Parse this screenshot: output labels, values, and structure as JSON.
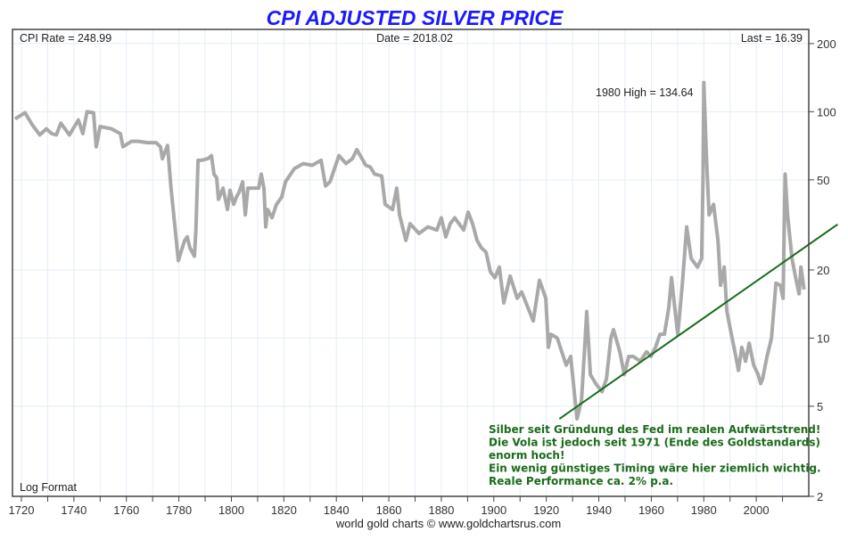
{
  "chart_data": {
    "type": "line",
    "title": "CPI ADJUSTED SILVER PRICE",
    "title_color": "#1a1aff",
    "header": {
      "cpi_rate": "CPI Rate = 248.99",
      "date": "Date = 2018.02",
      "last": "Last = 16.39"
    },
    "scale_label": "Log Format",
    "y_scale": "log",
    "ylim": [
      2,
      231
    ],
    "xlim": [
      1716.6,
      2020
    ],
    "grid": true,
    "x_ticks": [
      "1720",
      "1740",
      "1760",
      "1780",
      "1800",
      "1820",
      "1840",
      "1860",
      "1880",
      "1900",
      "1920",
      "1940",
      "1960",
      "1980",
      "2000"
    ],
    "y_ticks": [
      "200",
      "100",
      "50",
      "20",
      "10",
      "5",
      "2"
    ],
    "series": [
      {
        "color": "#a9a9a9",
        "points": [
          [
            1717.6,
            93
          ],
          [
            1721.4,
            99
          ],
          [
            1724,
            88
          ],
          [
            1727,
            79
          ],
          [
            1729.5,
            84
          ],
          [
            1731.6,
            80
          ],
          [
            1733.3,
            79
          ],
          [
            1735,
            89
          ],
          [
            1738.3,
            79
          ],
          [
            1741.7,
            92
          ],
          [
            1743.4,
            80
          ],
          [
            1745,
            100
          ],
          [
            1747.5,
            99
          ],
          [
            1748.5,
            70
          ],
          [
            1750,
            86
          ],
          [
            1754.3,
            84
          ],
          [
            1757.7,
            80
          ],
          [
            1758.7,
            70
          ],
          [
            1762,
            74
          ],
          [
            1764.5,
            74
          ],
          [
            1768,
            73
          ],
          [
            1771.3,
            73
          ],
          [
            1773,
            70
          ],
          [
            1773.7,
            62
          ],
          [
            1775.7,
            71
          ],
          [
            1777,
            46
          ],
          [
            1779.8,
            22
          ],
          [
            1780.8,
            24
          ],
          [
            1782.2,
            27
          ],
          [
            1783.2,
            28
          ],
          [
            1784.2,
            25
          ],
          [
            1785.9,
            23
          ],
          [
            1786.5,
            30
          ],
          [
            1787.3,
            61
          ],
          [
            1788.6,
            61
          ],
          [
            1791,
            62
          ],
          [
            1792.4,
            64
          ],
          [
            1793.4,
            53
          ],
          [
            1794.4,
            51
          ],
          [
            1795.1,
            41
          ],
          [
            1796.8,
            46
          ],
          [
            1798.5,
            37
          ],
          [
            1799.5,
            45
          ],
          [
            1800.9,
            39
          ],
          [
            1801.9,
            42
          ],
          [
            1802.9,
            44
          ],
          [
            1804.3,
            49
          ],
          [
            1805.3,
            35
          ],
          [
            1806.3,
            46
          ],
          [
            1808.7,
            46
          ],
          [
            1810.4,
            46
          ],
          [
            1811.4,
            53
          ],
          [
            1812.4,
            46
          ],
          [
            1813.1,
            31
          ],
          [
            1813.8,
            37
          ],
          [
            1815.5,
            34
          ],
          [
            1817.2,
            39
          ],
          [
            1819.2,
            42
          ],
          [
            1820.6,
            49
          ],
          [
            1824,
            56
          ],
          [
            1827.4,
            59
          ],
          [
            1830.8,
            58
          ],
          [
            1834.2,
            61
          ],
          [
            1835.9,
            47
          ],
          [
            1837.6,
            49
          ],
          [
            1839.3,
            56
          ],
          [
            1841,
            64
          ],
          [
            1843.7,
            59
          ],
          [
            1846.1,
            62
          ],
          [
            1847.8,
            68
          ],
          [
            1851.2,
            58
          ],
          [
            1852.9,
            57
          ],
          [
            1854.6,
            53
          ],
          [
            1857.3,
            52
          ],
          [
            1858.6,
            39
          ],
          [
            1861.4,
            37
          ],
          [
            1863,
            46
          ],
          [
            1864.1,
            35
          ],
          [
            1866.5,
            27
          ],
          [
            1868.1,
            32
          ],
          [
            1871.5,
            29
          ],
          [
            1874.9,
            31
          ],
          [
            1878.3,
            30
          ],
          [
            1880,
            34
          ],
          [
            1881.7,
            28
          ],
          [
            1883.4,
            32
          ],
          [
            1885.1,
            34
          ],
          [
            1888.5,
            30
          ],
          [
            1890.2,
            36
          ],
          [
            1891.9,
            32
          ],
          [
            1893.6,
            27
          ],
          [
            1895.3,
            25
          ],
          [
            1897,
            24
          ],
          [
            1898.7,
            19.6
          ],
          [
            1900.4,
            18.5
          ],
          [
            1902.1,
            20.6
          ],
          [
            1903.8,
            14.3
          ],
          [
            1906.2,
            18.8
          ],
          [
            1908.9,
            15
          ],
          [
            1910.6,
            16
          ],
          [
            1912.3,
            14.3
          ],
          [
            1915,
            11.9
          ],
          [
            1917.4,
            18
          ],
          [
            1919.8,
            15
          ],
          [
            1920.8,
            9.1
          ],
          [
            1921.8,
            10.4
          ],
          [
            1924.2,
            10
          ],
          [
            1925.9,
            8.7
          ],
          [
            1927.6,
            7.6
          ],
          [
            1929.3,
            8.3
          ],
          [
            1931,
            5.3
          ],
          [
            1931.7,
            4.4
          ],
          [
            1933.4,
            5.3
          ],
          [
            1934.4,
            8.3
          ],
          [
            1935.4,
            13.1
          ],
          [
            1936.8,
            6.9
          ],
          [
            1938.8,
            6.3
          ],
          [
            1941.2,
            5.8
          ],
          [
            1942.9,
            6.6
          ],
          [
            1944.6,
            10
          ],
          [
            1945.6,
            10.9
          ],
          [
            1948,
            8.7
          ],
          [
            1949.7,
            6.9
          ],
          [
            1951.4,
            8.3
          ],
          [
            1953.1,
            8.3
          ],
          [
            1955.8,
            7.9
          ],
          [
            1958.2,
            8.7
          ],
          [
            1959.9,
            8.3
          ],
          [
            1961.6,
            9.1
          ],
          [
            1963.3,
            10.4
          ],
          [
            1965,
            10.4
          ],
          [
            1966.7,
            13.7
          ],
          [
            1967.7,
            18.5
          ],
          [
            1969.1,
            13.1
          ],
          [
            1970.1,
            10.4
          ],
          [
            1971.8,
            17.1
          ],
          [
            1973.5,
            31
          ],
          [
            1975.2,
            22.5
          ],
          [
            1977.6,
            20.6
          ],
          [
            1979.2,
            22.5
          ],
          [
            1979.7,
            50
          ],
          [
            1980,
            134.6
          ],
          [
            1981,
            64
          ],
          [
            1982,
            35
          ],
          [
            1983.7,
            39
          ],
          [
            1985.4,
            27
          ],
          [
            1986.4,
            17.1
          ],
          [
            1987.8,
            20.6
          ],
          [
            1988.8,
            13.1
          ],
          [
            1990.5,
            10.4
          ],
          [
            1992.2,
            8.3
          ],
          [
            1993.2,
            7.2
          ],
          [
            1994.5,
            9.1
          ],
          [
            1995.9,
            7.9
          ],
          [
            1997.3,
            9.5
          ],
          [
            1999,
            7.6
          ],
          [
            2000.7,
            6.9
          ],
          [
            2001.7,
            6.3
          ],
          [
            2002.4,
            6.6
          ],
          [
            2004.1,
            8.3
          ],
          [
            2005.8,
            10
          ],
          [
            2007.5,
            17.5
          ],
          [
            2009.2,
            17.1
          ],
          [
            2010.2,
            15
          ],
          [
            2011,
            53
          ],
          [
            2011.9,
            35
          ],
          [
            2013.6,
            22.5
          ],
          [
            2015,
            18.5
          ],
          [
            2016.3,
            15.7
          ],
          [
            2017,
            20.6
          ],
          [
            2018.2,
            16.39
          ]
        ]
      }
    ],
    "trendline": {
      "color": "#1a6b1a",
      "from": [
        1925,
        4.4
      ],
      "to": [
        2031,
        31.8
      ]
    },
    "annotations": {
      "high": "1980 High = 134.64",
      "comment_color": "#1a6b1a",
      "comment_lines": [
        "Silber seit Gründung des Fed im realen Aufwärtstrend!",
        "Die Vola ist jedoch seit 1971 (Ende des Goldstandards)",
        "enorm hoch!",
        "Ein wenig günstiges Timing wäre hier ziemlich wichtig.",
        "Reale Performance ca. 2% p.a."
      ]
    },
    "footer": "world gold charts © www.goldchartsrus.com"
  }
}
